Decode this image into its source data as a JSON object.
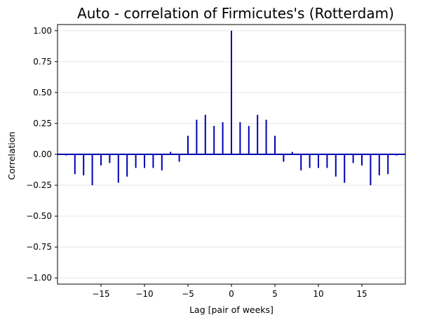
{
  "chart_data": {
    "type": "bar",
    "title": "Auto - correlation of Firmicutes's (Rotterdam)",
    "xlabel": "Lag [pair of weeks]",
    "ylabel": "Correlation",
    "xlim": [
      -20,
      20
    ],
    "ylim": [
      -1.05,
      1.05
    ],
    "x_ticks": [
      -15,
      -10,
      -5,
      0,
      5,
      10,
      15
    ],
    "x_tick_labels": [
      "−15",
      "−10",
      "−5",
      "0",
      "5",
      "10",
      "15"
    ],
    "y_ticks": [
      -1.0,
      -0.75,
      -0.5,
      -0.25,
      0.0,
      0.25,
      0.5,
      0.75,
      1.0
    ],
    "y_tick_labels": [
      "−1.00",
      "−0.75",
      "−0.50",
      "−0.25",
      "0.00",
      "0.25",
      "0.50",
      "0.75",
      "1.00"
    ],
    "grid": "horizontal",
    "series": [
      {
        "x": [
          -19,
          -18,
          -17,
          -16,
          -15,
          -14,
          -13,
          -12,
          -11,
          -10,
          -9,
          -8,
          -7,
          -6,
          -5,
          -4,
          -3,
          -2,
          -1,
          0,
          1,
          2,
          3,
          4,
          5,
          6,
          7,
          8,
          9,
          10,
          11,
          12,
          13,
          14,
          15,
          16,
          17,
          18,
          19
        ],
        "values": [
          -0.01,
          -0.16,
          -0.17,
          -0.25,
          -0.09,
          -0.07,
          -0.23,
          -0.18,
          -0.11,
          -0.11,
          -0.11,
          -0.13,
          0.02,
          -0.06,
          0.15,
          0.28,
          0.32,
          0.23,
          0.26,
          1.0,
          0.26,
          0.23,
          0.32,
          0.28,
          0.15,
          -0.06,
          0.02,
          -0.13,
          -0.11,
          -0.11,
          -0.11,
          -0.18,
          -0.23,
          -0.07,
          -0.09,
          -0.25,
          -0.17,
          -0.16,
          -0.01
        ]
      }
    ],
    "colors": {
      "stem": "#0000b3",
      "baseline": "#0000b3",
      "grid": "#e6e6e6"
    }
  }
}
